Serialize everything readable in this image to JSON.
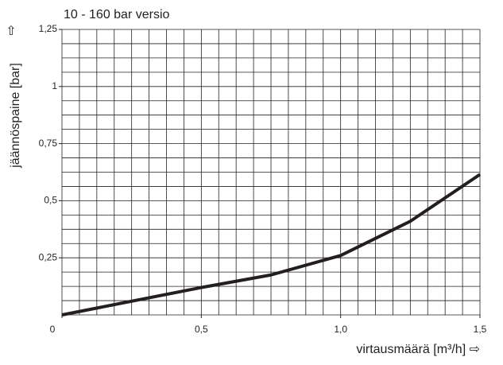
{
  "chart_data": {
    "type": "line",
    "title": "10 - 160 bar versio",
    "xlabel": "virtausmäärä [m³/h] ⇨",
    "ylabel": "jäännöspaine [bar]",
    "ylabel_arrow": "⇧",
    "x": [
      0,
      0.5,
      0.75,
      1.0,
      1.25,
      1.5
    ],
    "series": [
      {
        "name": null,
        "color": "#231f20",
        "values": [
          0,
          0.12,
          0.175,
          0.26,
          0.41,
          0.615
        ]
      }
    ],
    "xlim": [
      0,
      1.5
    ],
    "ylim": [
      0,
      1.25
    ],
    "xticks": [
      0,
      {
        "value": 0.5,
        "label": "0,5"
      },
      {
        "value": 1.0,
        "label": "1,0"
      },
      {
        "value": 1.5,
        "label": "1,5"
      }
    ],
    "yticks": [
      {
        "value": 0.25,
        "label": "0,25"
      },
      {
        "value": 0.5,
        "label": "0,5"
      },
      {
        "value": 0.75,
        "label": "0,75"
      },
      1,
      {
        "value": 1.25,
        "label": "1,25"
      }
    ],
    "grid": true,
    "grid_step": {
      "x": 0.0625,
      "y": 0.0625
    }
  }
}
